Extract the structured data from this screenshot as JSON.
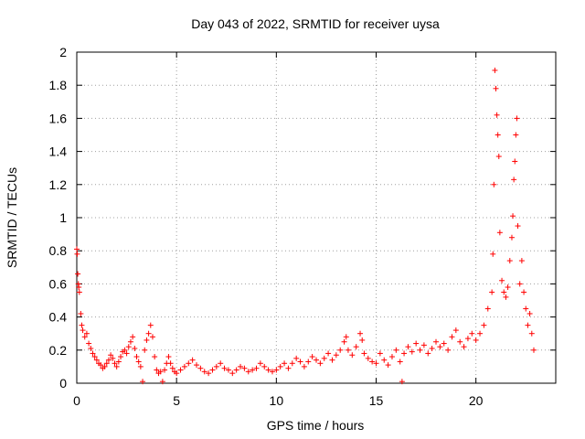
{
  "chart_data": {
    "type": "scatter",
    "title": "Day 043 of 2022, SRMTID for receiver uysa",
    "xlabel": "GPS time / hours",
    "ylabel": "SRMTID / TECUs",
    "xlim": [
      0,
      24
    ],
    "ylim": [
      0,
      2
    ],
    "xticks": [
      0,
      5,
      10,
      15,
      20
    ],
    "yticks": [
      0,
      0.2,
      0.4,
      0.6,
      0.8,
      1,
      1.2,
      1.4,
      1.6,
      1.8,
      2
    ],
    "ytick_labels": [
      "0",
      "0.2",
      "0.4",
      "0.6",
      "0.8",
      "1",
      "1.2",
      "1.4",
      "1.6",
      "1.8",
      "2"
    ],
    "grid": true,
    "marker": "+",
    "color": "#ff0000",
    "series": [
      {
        "name": "SRMTID",
        "points": [
          [
            0.0,
            0.81
          ],
          [
            0.02,
            0.78
          ],
          [
            0.05,
            0.66
          ],
          [
            0.08,
            0.6
          ],
          [
            0.1,
            0.58
          ],
          [
            0.13,
            0.55
          ],
          [
            0.2,
            0.42
          ],
          [
            0.25,
            0.35
          ],
          [
            0.3,
            0.32
          ],
          [
            0.4,
            0.28
          ],
          [
            0.5,
            0.3
          ],
          [
            0.6,
            0.24
          ],
          [
            0.7,
            0.21
          ],
          [
            0.8,
            0.18
          ],
          [
            0.9,
            0.16
          ],
          [
            1.0,
            0.14
          ],
          [
            1.1,
            0.12
          ],
          [
            1.2,
            0.11
          ],
          [
            1.3,
            0.09
          ],
          [
            1.4,
            0.1
          ],
          [
            1.5,
            0.12
          ],
          [
            1.6,
            0.14
          ],
          [
            1.7,
            0.17
          ],
          [
            1.8,
            0.15
          ],
          [
            1.9,
            0.12
          ],
          [
            2.0,
            0.1
          ],
          [
            2.1,
            0.13
          ],
          [
            2.2,
            0.16
          ],
          [
            2.3,
            0.19
          ],
          [
            2.4,
            0.2
          ],
          [
            2.5,
            0.18
          ],
          [
            2.6,
            0.22
          ],
          [
            2.7,
            0.25
          ],
          [
            2.8,
            0.28
          ],
          [
            2.9,
            0.21
          ],
          [
            3.0,
            0.16
          ],
          [
            3.1,
            0.13
          ],
          [
            3.2,
            0.1
          ],
          [
            3.3,
            0.01
          ],
          [
            3.4,
            0.2
          ],
          [
            3.5,
            0.26
          ],
          [
            3.6,
            0.3
          ],
          [
            3.7,
            0.35
          ],
          [
            3.8,
            0.28
          ],
          [
            3.9,
            0.16
          ],
          [
            4.0,
            0.08
          ],
          [
            4.1,
            0.06
          ],
          [
            4.2,
            0.07
          ],
          [
            4.3,
            0.01
          ],
          [
            4.4,
            0.08
          ],
          [
            4.5,
            0.12
          ],
          [
            4.6,
            0.16
          ],
          [
            4.7,
            0.12
          ],
          [
            4.8,
            0.09
          ],
          [
            4.9,
            0.07
          ],
          [
            5.0,
            0.06
          ],
          [
            5.2,
            0.08
          ],
          [
            5.4,
            0.1
          ],
          [
            5.6,
            0.12
          ],
          [
            5.8,
            0.14
          ],
          [
            6.0,
            0.11
          ],
          [
            6.2,
            0.09
          ],
          [
            6.4,
            0.07
          ],
          [
            6.6,
            0.06
          ],
          [
            6.8,
            0.08
          ],
          [
            7.0,
            0.1
          ],
          [
            7.2,
            0.12
          ],
          [
            7.4,
            0.09
          ],
          [
            7.6,
            0.08
          ],
          [
            7.8,
            0.06
          ],
          [
            8.0,
            0.08
          ],
          [
            8.2,
            0.1
          ],
          [
            8.4,
            0.09
          ],
          [
            8.6,
            0.07
          ],
          [
            8.8,
            0.08
          ],
          [
            9.0,
            0.09
          ],
          [
            9.2,
            0.12
          ],
          [
            9.4,
            0.1
          ],
          [
            9.6,
            0.08
          ],
          [
            9.8,
            0.07
          ],
          [
            10.0,
            0.08
          ],
          [
            10.2,
            0.1
          ],
          [
            10.4,
            0.12
          ],
          [
            10.6,
            0.09
          ],
          [
            10.8,
            0.12
          ],
          [
            11.0,
            0.15
          ],
          [
            11.2,
            0.13
          ],
          [
            11.4,
            0.1
          ],
          [
            11.6,
            0.13
          ],
          [
            11.8,
            0.16
          ],
          [
            12.0,
            0.14
          ],
          [
            12.2,
            0.12
          ],
          [
            12.4,
            0.15
          ],
          [
            12.6,
            0.18
          ],
          [
            12.8,
            0.14
          ],
          [
            13.0,
            0.17
          ],
          [
            13.2,
            0.2
          ],
          [
            13.4,
            0.25
          ],
          [
            13.5,
            0.28
          ],
          [
            13.6,
            0.2
          ],
          [
            13.8,
            0.17
          ],
          [
            14.0,
            0.22
          ],
          [
            14.2,
            0.3
          ],
          [
            14.3,
            0.26
          ],
          [
            14.4,
            0.18
          ],
          [
            14.6,
            0.15
          ],
          [
            14.8,
            0.13
          ],
          [
            15.0,
            0.12
          ],
          [
            15.2,
            0.18
          ],
          [
            15.4,
            0.14
          ],
          [
            15.6,
            0.11
          ],
          [
            15.8,
            0.16
          ],
          [
            16.0,
            0.2
          ],
          [
            16.2,
            0.13
          ],
          [
            16.3,
            0.01
          ],
          [
            16.4,
            0.18
          ],
          [
            16.6,
            0.22
          ],
          [
            16.8,
            0.19
          ],
          [
            17.0,
            0.24
          ],
          [
            17.2,
            0.2
          ],
          [
            17.4,
            0.23
          ],
          [
            17.6,
            0.18
          ],
          [
            17.8,
            0.21
          ],
          [
            18.0,
            0.25
          ],
          [
            18.2,
            0.22
          ],
          [
            18.4,
            0.24
          ],
          [
            18.6,
            0.2
          ],
          [
            18.8,
            0.28
          ],
          [
            19.0,
            0.32
          ],
          [
            19.2,
            0.25
          ],
          [
            19.4,
            0.22
          ],
          [
            19.6,
            0.27
          ],
          [
            19.8,
            0.3
          ],
          [
            20.0,
            0.26
          ],
          [
            20.2,
            0.3
          ],
          [
            20.4,
            0.35
          ],
          [
            20.6,
            0.45
          ],
          [
            20.8,
            0.55
          ],
          [
            20.85,
            0.78
          ],
          [
            20.9,
            1.2
          ],
          [
            20.95,
            1.89
          ],
          [
            21.0,
            1.78
          ],
          [
            21.05,
            1.62
          ],
          [
            21.1,
            1.5
          ],
          [
            21.15,
            1.37
          ],
          [
            21.2,
            0.91
          ],
          [
            21.3,
            0.62
          ],
          [
            21.4,
            0.55
          ],
          [
            21.5,
            0.52
          ],
          [
            21.6,
            0.58
          ],
          [
            21.7,
            0.74
          ],
          [
            21.8,
            0.88
          ],
          [
            21.85,
            1.01
          ],
          [
            21.9,
            1.23
          ],
          [
            21.95,
            1.34
          ],
          [
            22.0,
            1.5
          ],
          [
            22.05,
            1.6
          ],
          [
            22.1,
            0.95
          ],
          [
            22.2,
            0.6
          ],
          [
            22.3,
            0.74
          ],
          [
            22.4,
            0.55
          ],
          [
            22.5,
            0.45
          ],
          [
            22.6,
            0.35
          ],
          [
            22.7,
            0.42
          ],
          [
            22.8,
            0.3
          ],
          [
            22.9,
            0.2
          ]
        ]
      }
    ]
  }
}
